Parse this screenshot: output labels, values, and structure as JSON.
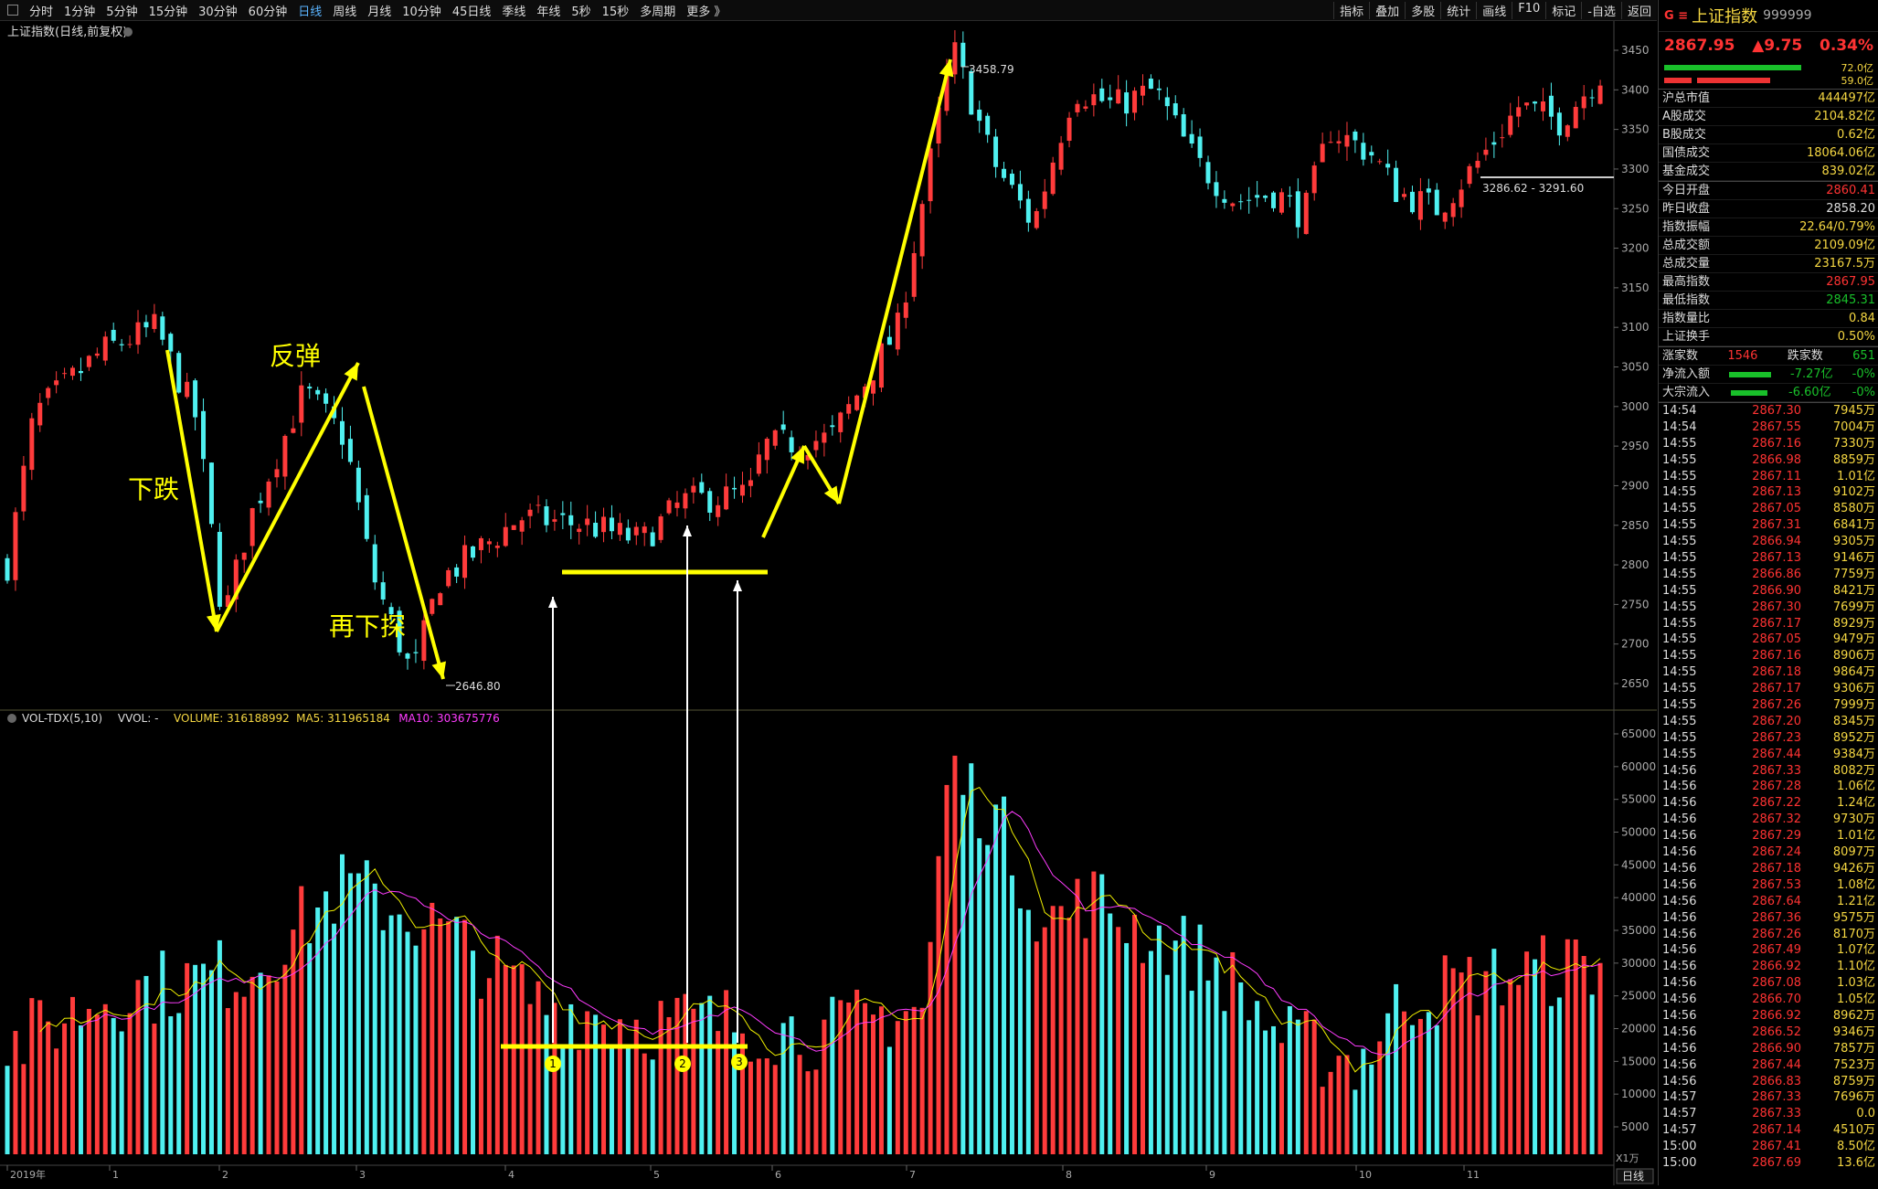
{
  "toolbar": {
    "periods": [
      "分时",
      "1分钟",
      "5分钟",
      "15分钟",
      "30分钟",
      "60分钟",
      "日线",
      "周线",
      "月线",
      "10分钟",
      "45日线",
      "季线",
      "年线",
      "5秒",
      "15秒",
      "多周期",
      "更多 》"
    ],
    "active_period": "日线",
    "right_tools": [
      "指标",
      "叠加",
      "多股",
      "统计",
      "画线",
      "F10",
      "标记",
      "-自选",
      "返回"
    ]
  },
  "chart": {
    "title": "上证指数(日线,前复权)",
    "high_label": "3458.79",
    "low_label": "2646.80",
    "range_label": "3286.62 - 3291.60",
    "price_axis": [
      "3450",
      "3400",
      "3350",
      "3300",
      "3250",
      "3200",
      "3150",
      "3100",
      "3050",
      "3000",
      "2950",
      "2900",
      "2850",
      "2800",
      "2750",
      "2700",
      "2650"
    ],
    "annotations": {
      "down": "下跌",
      "rebound": "反弹",
      "down_again": "再下探"
    },
    "markers": [
      "1",
      "2",
      "3"
    ],
    "vol_header": {
      "name": "VOL-TDX(5,10)",
      "vvol": "VVOL: -",
      "volume": "VOLUME: 316188992",
      "ma5": "MA5: 311965184",
      "ma10": "MA10: 303675776"
    },
    "vol_axis": [
      "65000",
      "60000",
      "55000",
      "50000",
      "45000",
      "40000",
      "35000",
      "30000",
      "25000",
      "20000",
      "15000",
      "10000",
      "5000"
    ],
    "vol_unit": "X1万",
    "time_axis": [
      "2019年",
      "1",
      "2",
      "3",
      "4",
      "5",
      "6",
      "7",
      "8",
      "9",
      "10",
      "11"
    ],
    "period_button": "日线",
    "colors": {
      "up": "#ff3b3b",
      "down": "#4ff0f0",
      "ma5": "#f0f000",
      "ma10": "#ff3cff",
      "arrow": "#ffff00"
    }
  },
  "panel": {
    "badge": "G ≡",
    "name": "上证指数",
    "code": "999999",
    "price": "2867.95",
    "change": "▲9.75",
    "pct": "0.34%",
    "bar1": "72.0亿",
    "bar2": "59.0亿",
    "stats1": [
      {
        "k": "沪总市值",
        "v": "444497亿"
      },
      {
        "k": "A股成交",
        "v": "2104.82亿"
      },
      {
        "k": "B股成交",
        "v": "0.62亿"
      },
      {
        "k": "国债成交",
        "v": "18064.06亿"
      },
      {
        "k": "基金成交",
        "v": "839.02亿"
      }
    ],
    "stats2": [
      {
        "k": "今日开盘",
        "v": "2860.41"
      },
      {
        "k": "昨日收盘",
        "v": "2858.20"
      },
      {
        "k": "指数振幅",
        "v": "22.64/0.79%"
      },
      {
        "k": "总成交额",
        "v": "2109.09亿"
      },
      {
        "k": "总成交量",
        "v": "23167.5万"
      },
      {
        "k": "最高指数",
        "v": "2867.95"
      },
      {
        "k": "最低指数",
        "v": "2845.31"
      },
      {
        "k": "指数量比",
        "v": "0.84"
      },
      {
        "k": "上证换手",
        "v": "0.50%"
      }
    ],
    "rise_label": "涨家数",
    "rise": "1546",
    "fall_label": "跌家数",
    "fall": "651",
    "flow1": {
      "k": "净流入额",
      "v": "-7.27亿",
      "p": "-0%"
    },
    "flow2": {
      "k": "大宗流入",
      "v": "-6.60亿",
      "p": "-0%"
    },
    "ticks": [
      [
        "14:54",
        "2867.30",
        "7945万"
      ],
      [
        "14:54",
        "2867.55",
        "7004万"
      ],
      [
        "14:55",
        "2867.16",
        "7330万"
      ],
      [
        "14:55",
        "2866.98",
        "8859万"
      ],
      [
        "14:55",
        "2867.11",
        "1.01亿"
      ],
      [
        "14:55",
        "2867.13",
        "9102万"
      ],
      [
        "14:55",
        "2867.05",
        "8580万"
      ],
      [
        "14:55",
        "2867.31",
        "6841万"
      ],
      [
        "14:55",
        "2866.94",
        "9305万"
      ],
      [
        "14:55",
        "2867.13",
        "9146万"
      ],
      [
        "14:55",
        "2866.86",
        "7759万"
      ],
      [
        "14:55",
        "2866.90",
        "8421万"
      ],
      [
        "14:55",
        "2867.30",
        "7699万"
      ],
      [
        "14:55",
        "2867.17",
        "8929万"
      ],
      [
        "14:55",
        "2867.05",
        "9479万"
      ],
      [
        "14:55",
        "2867.16",
        "8906万"
      ],
      [
        "14:55",
        "2867.18",
        "9864万"
      ],
      [
        "14:55",
        "2867.17",
        "9306万"
      ],
      [
        "14:55",
        "2867.26",
        "7999万"
      ],
      [
        "14:55",
        "2867.20",
        "8345万"
      ],
      [
        "14:55",
        "2867.23",
        "8952万"
      ],
      [
        "14:55",
        "2867.44",
        "9384万"
      ],
      [
        "14:56",
        "2867.33",
        "8082万"
      ],
      [
        "14:56",
        "2867.28",
        "1.06亿"
      ],
      [
        "14:56",
        "2867.22",
        "1.24亿"
      ],
      [
        "14:56",
        "2867.32",
        "9730万"
      ],
      [
        "14:56",
        "2867.29",
        "1.01亿"
      ],
      [
        "14:56",
        "2867.24",
        "8097万"
      ],
      [
        "14:56",
        "2867.18",
        "9426万"
      ],
      [
        "14:56",
        "2867.53",
        "1.08亿"
      ],
      [
        "14:56",
        "2867.64",
        "1.21亿"
      ],
      [
        "14:56",
        "2867.36",
        "9575万"
      ],
      [
        "14:56",
        "2867.26",
        "8170万"
      ],
      [
        "14:56",
        "2867.49",
        "1.07亿"
      ],
      [
        "14:56",
        "2866.92",
        "1.10亿"
      ],
      [
        "14:56",
        "2867.08",
        "1.03亿"
      ],
      [
        "14:56",
        "2866.70",
        "1.05亿"
      ],
      [
        "14:56",
        "2866.92",
        "8962万"
      ],
      [
        "14:56",
        "2866.52",
        "9346万"
      ],
      [
        "14:56",
        "2866.90",
        "7857万"
      ],
      [
        "14:56",
        "2867.44",
        "7523万"
      ],
      [
        "14:56",
        "2866.83",
        "8759万"
      ],
      [
        "14:57",
        "2867.33",
        "7696万"
      ],
      [
        "14:57",
        "2867.33",
        "0.0"
      ],
      [
        "14:57",
        "2867.14",
        "4510万"
      ],
      [
        "15:00",
        "2867.41",
        "8.50亿"
      ],
      [
        "15:00",
        "2867.69",
        "13.6亿"
      ]
    ]
  }
}
